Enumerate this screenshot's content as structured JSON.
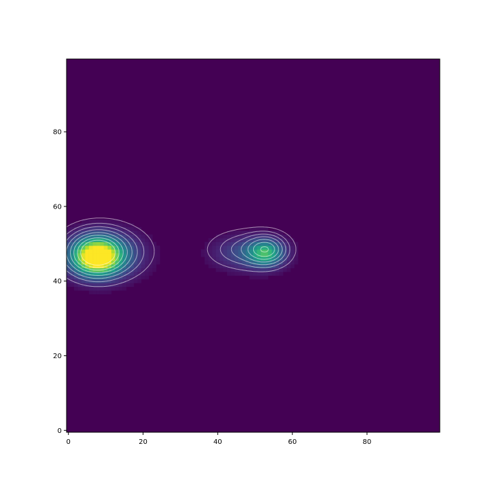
{
  "chart_data": {
    "type": "heatmap",
    "title": "",
    "xlabel": "",
    "ylabel": "",
    "xlim": [
      -0.5,
      99.5
    ],
    "ylim": [
      99.5,
      -0.5
    ],
    "y_inverted": true,
    "grid": false,
    "legend": "none",
    "colormap": "viridis",
    "background_value": 0,
    "x_ticks": [
      {
        "value": 0,
        "label": "0"
      },
      {
        "value": 20,
        "label": "20"
      },
      {
        "value": 40,
        "label": "40"
      },
      {
        "value": 60,
        "label": "60"
      },
      {
        "value": 80,
        "label": "80"
      }
    ],
    "y_ticks": [
      {
        "value": 0,
        "label": "0"
      },
      {
        "value": 20,
        "label": "20"
      },
      {
        "value": 40,
        "label": "40"
      },
      {
        "value": 60,
        "label": "60"
      },
      {
        "value": 80,
        "label": "80"
      }
    ],
    "hotspots": [
      {
        "x": 7.5,
        "y": 47.5,
        "peak": 1.0,
        "sx": 4.5,
        "sy": 3.4
      },
      {
        "x": 10.0,
        "y": 48.0,
        "peak": 0.35,
        "sx": 6.5,
        "sy": 4.0
      },
      {
        "x": 53.0,
        "y": 48.5,
        "peak": 0.55,
        "sx": 3.2,
        "sy": 2.4
      },
      {
        "x": 48.0,
        "y": 48.5,
        "peak": 0.25,
        "sx": 6.0,
        "sy": 3.0
      }
    ],
    "contour_color": "#ffffff",
    "contour_levels": [
      0.05,
      0.12,
      0.2,
      0.3,
      0.42,
      0.55,
      0.7,
      0.85
    ]
  }
}
